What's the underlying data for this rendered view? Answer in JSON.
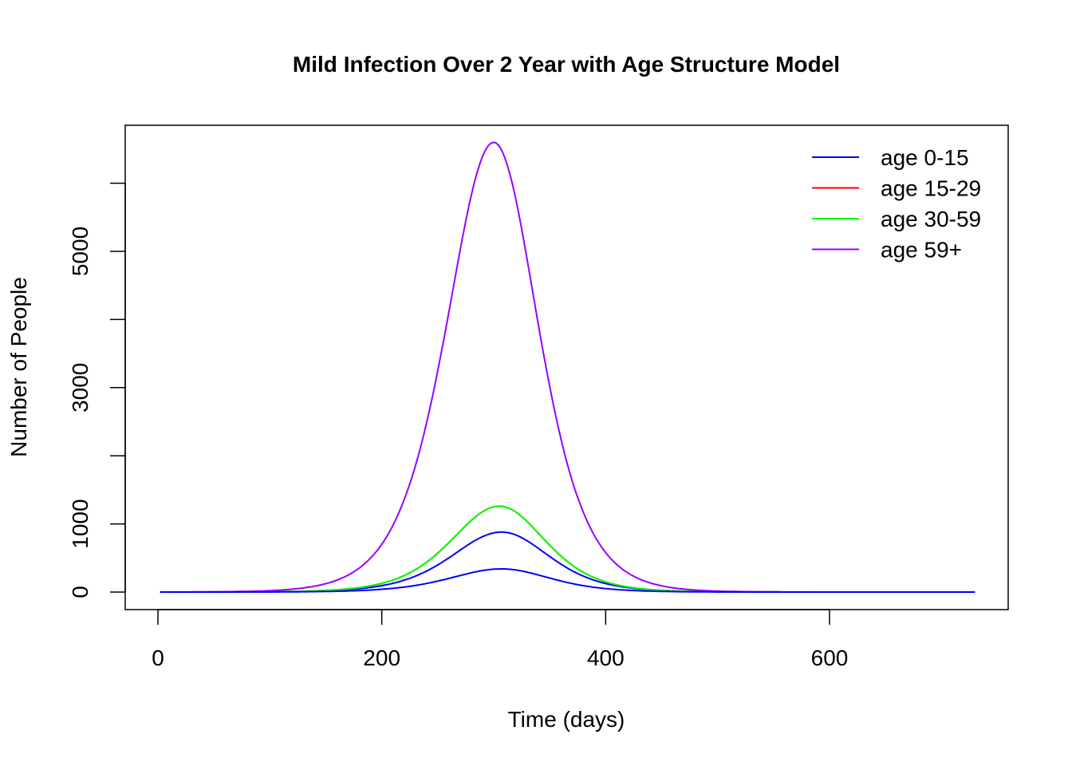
{
  "chart_data": {
    "type": "line",
    "title": "Mild Infection Over 2 Year with Age Structure Model",
    "xlabel": "Time (days)",
    "ylabel": "Number of People",
    "xlim": [
      0,
      730
    ],
    "ylim": [
      0,
      6400
    ],
    "x_ticks": [
      0,
      200,
      400,
      600
    ],
    "x_tick_labels": [
      "0",
      "200",
      "400",
      "600"
    ],
    "y_ticks": [
      0,
      1000,
      2000,
      3000,
      4000,
      5000,
      6000
    ],
    "y_tick_labels": [
      "0",
      "1000",
      "",
      "3000",
      "",
      "5000",
      ""
    ],
    "legend_position": "top-right",
    "legend": [
      {
        "label": "age 0-15",
        "color": "#0000ff"
      },
      {
        "label": "age 15-29",
        "color": "#ff0000"
      },
      {
        "label": "age 30-59",
        "color": "#00ff00"
      },
      {
        "label": "age 59+",
        "color": "#9900ff"
      }
    ],
    "series": [
      {
        "color": "#0000ff",
        "peak": 880,
        "peak_day": 307,
        "sigma_left": 60,
        "sigma_right": 57
      },
      {
        "color": "#ff0000",
        "peak": 1260,
        "peak_day": 305,
        "sigma_left": 58,
        "sigma_right": 55
      },
      {
        "color": "#00ff00",
        "peak": 1260,
        "peak_day": 305,
        "sigma_left": 58,
        "sigma_right": 55
      },
      {
        "color": "#9900ff",
        "peak": 6600,
        "peak_day": 300,
        "sigma_left": 56,
        "sigma_right": 53
      },
      {
        "color": "#0000ff",
        "peak": 340,
        "peak_day": 307,
        "sigma_left": 62,
        "sigma_right": 58
      }
    ]
  }
}
